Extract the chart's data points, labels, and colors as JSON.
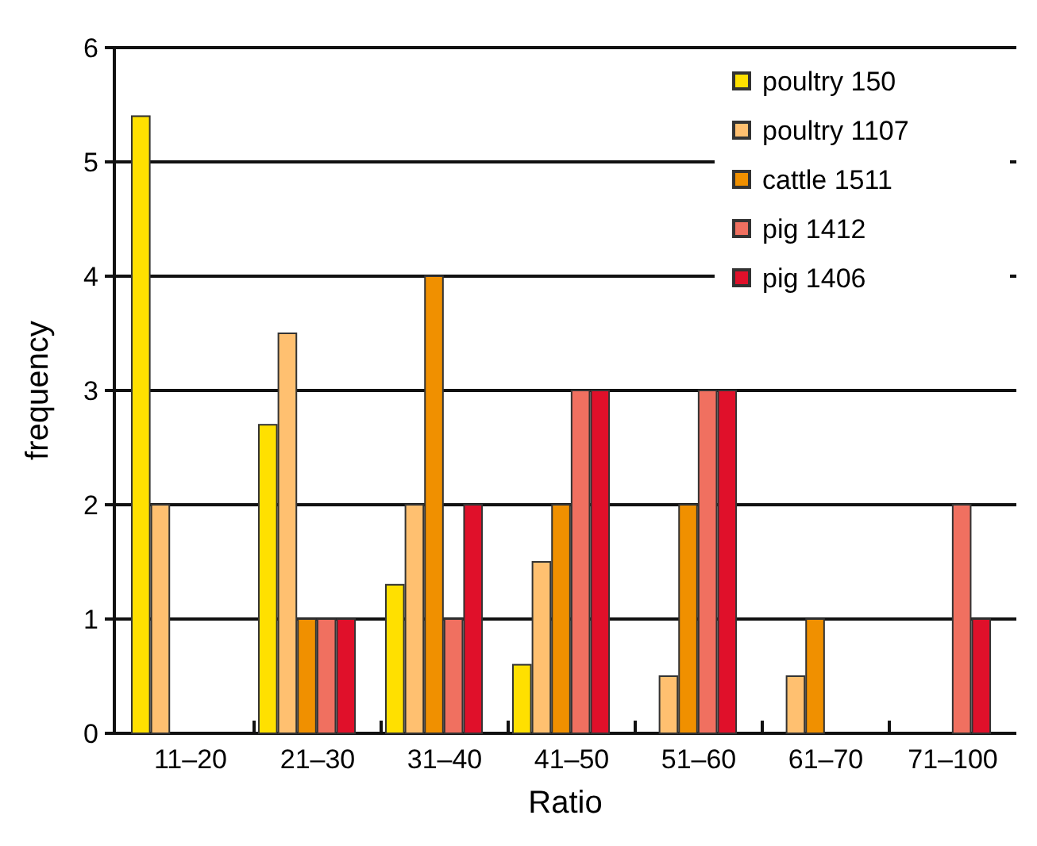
{
  "chart_data": {
    "type": "bar",
    "xlabel": "Ratio",
    "ylabel": "frequency",
    "categories": [
      "11–20",
      "21–30",
      "31–40",
      "41–50",
      "51–60",
      "61–70",
      "71–100"
    ],
    "series": [
      {
        "name": "poultry 150",
        "color": "#ffe000",
        "values": [
          5.4,
          2.7,
          1.3,
          0.6,
          0,
          0,
          0
        ]
      },
      {
        "name": "poultry 1107",
        "color": "#ffc070",
        "values": [
          2,
          3.5,
          2,
          1.5,
          0.5,
          0.5,
          0
        ]
      },
      {
        "name": "cattle 1511",
        "color": "#f09000",
        "values": [
          0,
          1,
          4,
          2,
          2,
          1,
          0
        ]
      },
      {
        "name": "pig 1412",
        "color": "#f07060",
        "values": [
          0,
          1,
          1,
          3,
          3,
          0,
          2
        ]
      },
      {
        "name": "pig 1406",
        "color": "#e0102a",
        "values": [
          0,
          1,
          2,
          3,
          3,
          0,
          1
        ]
      }
    ],
    "ylim": [
      0,
      6
    ],
    "yticks": [
      0,
      1,
      2,
      3,
      4,
      5,
      6
    ],
    "grid": "y",
    "legend": "top right"
  }
}
